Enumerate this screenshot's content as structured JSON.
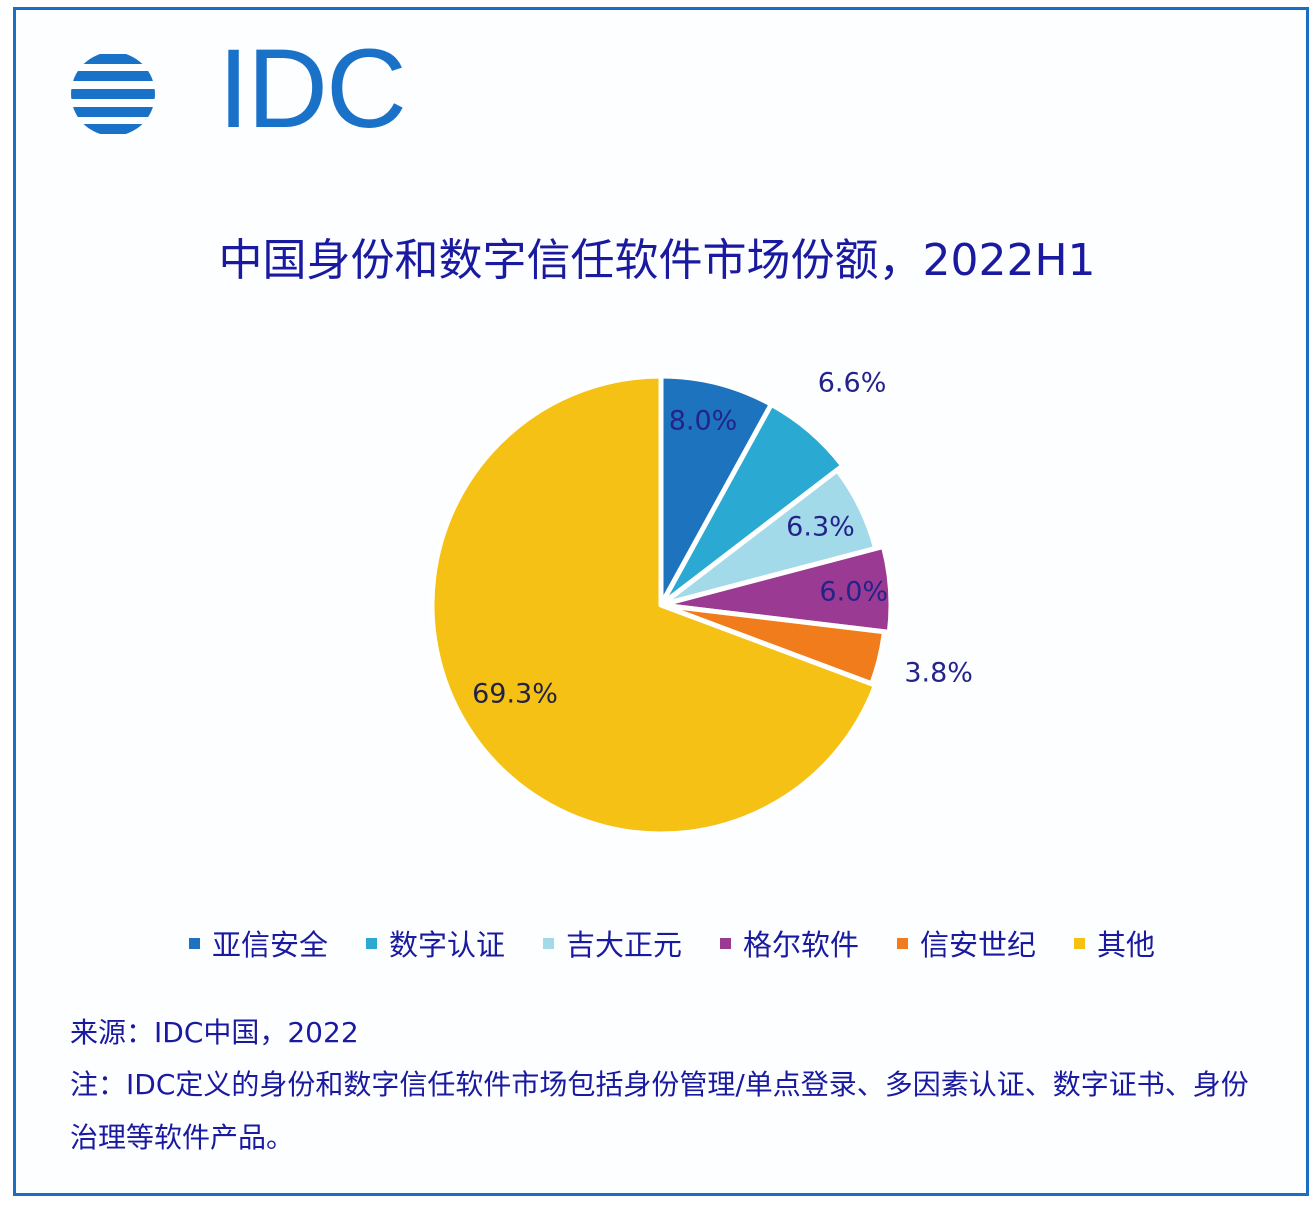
{
  "logo": {
    "text": "IDC",
    "color": "#1a72c8"
  },
  "title": "中国身份和数字信任软件市场份额，2022H1",
  "chart_data": {
    "type": "pie",
    "title": "中国身份和数字信任软件市场份额，2022H1",
    "categories": [
      "亚信安全",
      "数字认证",
      "吉大正元",
      "格尔软件",
      "信安世纪",
      "其他"
    ],
    "values": [
      8.0,
      6.6,
      6.3,
      6.0,
      3.8,
      69.3
    ],
    "labels": [
      "8.0%",
      "6.6%",
      "6.3%",
      "6.0%",
      "3.8%",
      "69.3%"
    ],
    "colors": [
      "#1e73be",
      "#2aa9d2",
      "#a3daea",
      "#9b3a93",
      "#f07c1c",
      "#f5c115"
    ],
    "start_angle": "12 o'clock",
    "direction": "clockwise",
    "legend_position": "bottom",
    "unit": "%"
  },
  "legend": [
    {
      "label": "亚信安全",
      "color": "#1e73be"
    },
    {
      "label": "数字认证",
      "color": "#2aa9d2"
    },
    {
      "label": "吉大正元",
      "color": "#a3daea"
    },
    {
      "label": "格尔软件",
      "color": "#9b3a93"
    },
    {
      "label": "信安世纪",
      "color": "#f07c1c"
    },
    {
      "label": "其他",
      "color": "#f5c115"
    }
  ],
  "footer": {
    "source": "来源：IDC中国，2022",
    "note": "注：IDC定义的身份和数字信任软件市场包括身份管理/单点登录、多因素认证、数字证书、身份治理等软件产品。"
  }
}
